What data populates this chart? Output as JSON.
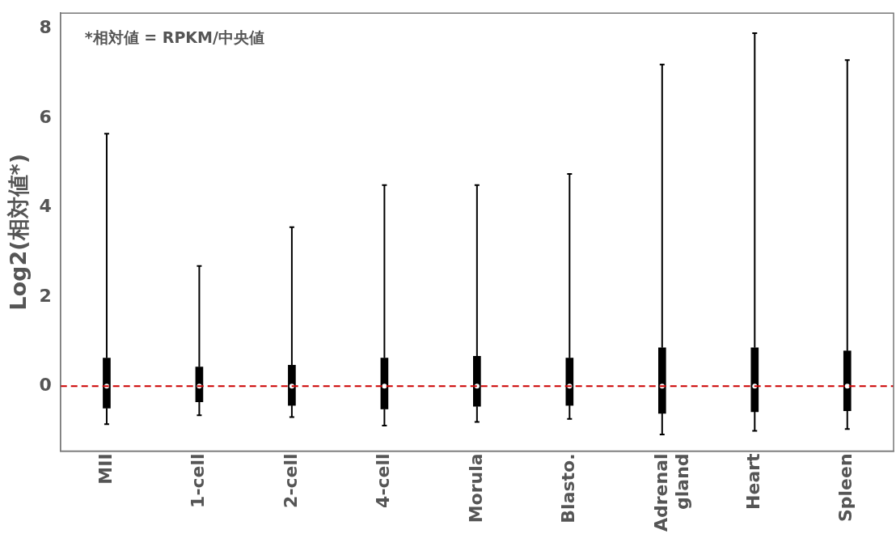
{
  "chart_data": {
    "type": "box",
    "ylabel": "Log2(相対値*)",
    "annotations": [
      "*相対値 = RPKM/中央値"
    ],
    "categories": [
      "MII",
      "1-cell",
      "2-cell",
      "4-cell",
      "Morula",
      "Blasto.",
      "Adrenal gland",
      "Heart",
      "Spleen"
    ],
    "color": "#000000",
    "boxes": [
      {
        "low": -0.85,
        "q1": -0.49,
        "median": 0,
        "q3": 0.63,
        "high": 5.65
      },
      {
        "low": -0.65,
        "q1": -0.35,
        "median": 0,
        "q3": 0.43,
        "high": 2.69
      },
      {
        "low": -0.69,
        "q1": -0.43,
        "median": 0,
        "q3": 0.47,
        "high": 3.56
      },
      {
        "low": -0.88,
        "q1": -0.51,
        "median": 0,
        "q3": 0.63,
        "high": 4.5
      },
      {
        "low": -0.8,
        "q1": -0.45,
        "median": 0,
        "q3": 0.67,
        "high": 4.5
      },
      {
        "low": -0.73,
        "q1": -0.43,
        "median": 0,
        "q3": 0.63,
        "high": 4.75
      },
      {
        "low": -1.08,
        "q1": -0.61,
        "median": 0,
        "q3": 0.86,
        "high": 7.2
      },
      {
        "low": -1.0,
        "q1": -0.57,
        "median": 0,
        "q3": 0.86,
        "high": 7.9
      },
      {
        "low": -0.96,
        "q1": -0.55,
        "median": 0,
        "q3": 0.79,
        "high": 7.3
      }
    ],
    "ylim": [
      -1.45,
      8.35
    ],
    "yticks": [
      0,
      2,
      4,
      6,
      8
    ],
    "ref_lines": [
      {
        "axis": "y",
        "value": 0,
        "color": "#cc0000",
        "line_style": "dashed"
      }
    ],
    "grid": false,
    "legend": false
  }
}
